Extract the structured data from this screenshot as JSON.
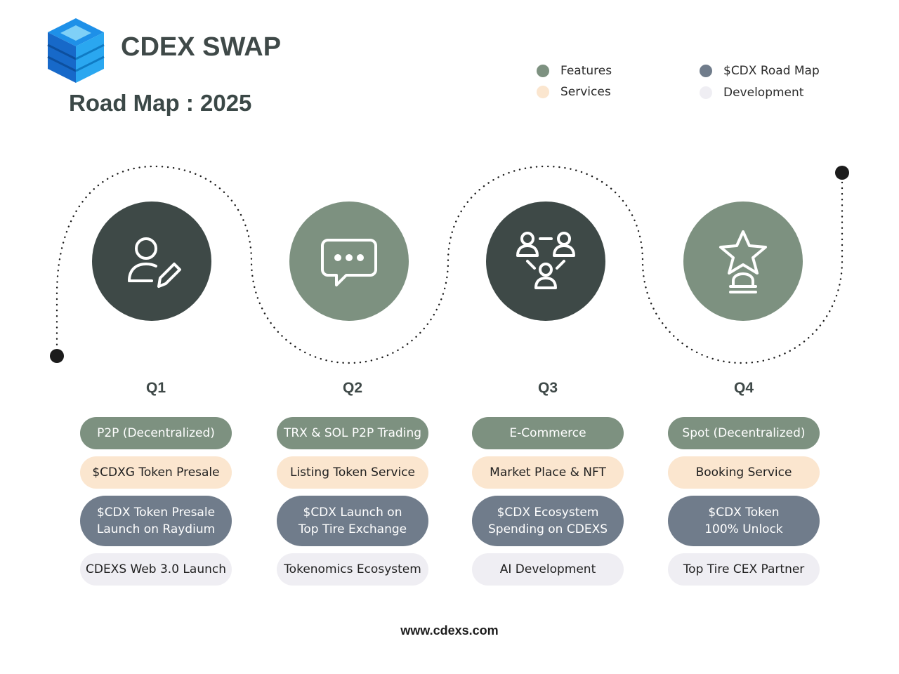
{
  "brand": {
    "name": "CDEX SWAP"
  },
  "title": "Road Map : 2025",
  "colors": {
    "features": "#7d9180",
    "services": "#fbe6cf",
    "roadmap": "#707c8b",
    "development": "#efeef3",
    "dark_circle": "#3e4947",
    "green_circle": "#7d9180"
  },
  "legend": [
    {
      "label": "Features",
      "color": "#7d9180"
    },
    {
      "label": "Services",
      "color": "#fbe6cf"
    },
    {
      "label": "$CDX Road Map",
      "color": "#707c8b"
    },
    {
      "label": "Development",
      "color": "#efeef3"
    }
  ],
  "quarters": [
    {
      "label": "Q1",
      "icon": "user-edit-icon",
      "feature": "P2P (Decentralized)",
      "service": "$CDXG Token Presale",
      "roadmap": "$CDX Token Presale\nLaunch on Raydium",
      "development": "CDEXS Web 3.0 Launch"
    },
    {
      "label": "Q2",
      "icon": "chat-bubble-icon",
      "feature": "TRX & SOL P2P Trading",
      "service": "Listing Token Service",
      "roadmap": "$CDX Launch on\nTop Tire Exchange",
      "development": "Tokenomics Ecosystem"
    },
    {
      "label": "Q3",
      "icon": "team-network-icon",
      "feature": "E-Commerce",
      "service": "Market Place & NFT",
      "roadmap": "$CDX Ecosystem\nSpending on CDEXS",
      "development": "AI Development"
    },
    {
      "label": "Q4",
      "icon": "star-trophy-icon",
      "feature": "Spot (Decentralized)",
      "service": "Booking Service",
      "roadmap": "$CDX Token\n100% Unlock",
      "development": "Top Tire CEX Partner"
    }
  ],
  "footer": "www.cdexs.com"
}
